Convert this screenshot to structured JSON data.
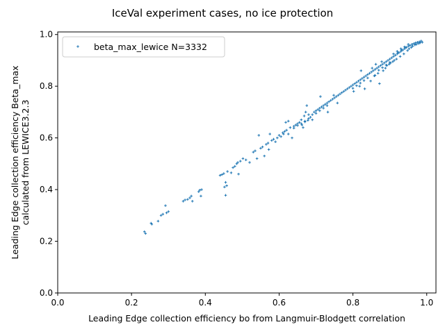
{
  "chart_data": {
    "type": "scatter",
    "title": "IceVal experiment cases, no ice protection",
    "xlabel": "Leading Edge collection efficiency bo from Langmuir-Blodgett correlation",
    "ylabel_lines": [
      "Leading Edge collection efficiency Beta_max",
      "calculated from LEWICE3.2.3"
    ],
    "xlim": [
      0.0,
      1.025
    ],
    "ylim": [
      0.0,
      1.01
    ],
    "xticks": [
      0.0,
      0.2,
      0.4,
      0.6,
      0.8,
      1.0
    ],
    "xtick_labels": [
      "0.0",
      "0.2",
      "0.4",
      "0.6",
      "0.8",
      "1.0"
    ],
    "yticks": [
      0.0,
      0.2,
      0.4,
      0.6,
      0.8,
      1.0
    ],
    "ytick_labels": [
      "0.0",
      "0.2",
      "0.4",
      "0.6",
      "0.8",
      "1.0"
    ],
    "grid": false,
    "legend_position": "upper-left",
    "marker": "+",
    "series": [
      {
        "name": "beta_max_lewice N=3332",
        "color": "#1f77b4",
        "points": [
          [
            0.235,
            0.237
          ],
          [
            0.238,
            0.23
          ],
          [
            0.253,
            0.27
          ],
          [
            0.255,
            0.266
          ],
          [
            0.272,
            0.278
          ],
          [
            0.28,
            0.3
          ],
          [
            0.285,
            0.305
          ],
          [
            0.292,
            0.338
          ],
          [
            0.3,
            0.315
          ],
          [
            0.295,
            0.31
          ],
          [
            0.34,
            0.355
          ],
          [
            0.345,
            0.36
          ],
          [
            0.352,
            0.362
          ],
          [
            0.358,
            0.368
          ],
          [
            0.362,
            0.375
          ],
          [
            0.365,
            0.355
          ],
          [
            0.382,
            0.392
          ],
          [
            0.385,
            0.398
          ],
          [
            0.388,
            0.375
          ],
          [
            0.39,
            0.4
          ],
          [
            0.44,
            0.455
          ],
          [
            0.445,
            0.458
          ],
          [
            0.45,
            0.462
          ],
          [
            0.452,
            0.41
          ],
          [
            0.455,
            0.428
          ],
          [
            0.455,
            0.378
          ],
          [
            0.458,
            0.415
          ],
          [
            0.46,
            0.47
          ],
          [
            0.47,
            0.465
          ],
          [
            0.475,
            0.485
          ],
          [
            0.48,
            0.49
          ],
          [
            0.485,
            0.5
          ],
          [
            0.488,
            0.505
          ],
          [
            0.49,
            0.46
          ],
          [
            0.495,
            0.51
          ],
          [
            0.502,
            0.52
          ],
          [
            0.51,
            0.515
          ],
          [
            0.52,
            0.505
          ],
          [
            0.53,
            0.545
          ],
          [
            0.535,
            0.55
          ],
          [
            0.54,
            0.52
          ],
          [
            0.545,
            0.61
          ],
          [
            0.55,
            0.56
          ],
          [
            0.555,
            0.565
          ],
          [
            0.56,
            0.53
          ],
          [
            0.565,
            0.575
          ],
          [
            0.57,
            0.58
          ],
          [
            0.572,
            0.555
          ],
          [
            0.575,
            0.615
          ],
          [
            0.58,
            0.59
          ],
          [
            0.585,
            0.595
          ],
          [
            0.59,
            0.585
          ],
          [
            0.595,
            0.6
          ],
          [
            0.6,
            0.61
          ],
          [
            0.605,
            0.605
          ],
          [
            0.61,
            0.62
          ],
          [
            0.612,
            0.615
          ],
          [
            0.615,
            0.625
          ],
          [
            0.618,
            0.66
          ],
          [
            0.62,
            0.63
          ],
          [
            0.625,
            0.615
          ],
          [
            0.625,
            0.665
          ],
          [
            0.63,
            0.64
          ],
          [
            0.635,
            0.6
          ],
          [
            0.64,
            0.645
          ],
          [
            0.645,
            0.65
          ],
          [
            0.65,
            0.655
          ],
          [
            0.655,
            0.66
          ],
          [
            0.66,
            0.67
          ],
          [
            0.662,
            0.65
          ],
          [
            0.665,
            0.64
          ],
          [
            0.668,
            0.685
          ],
          [
            0.67,
            0.665
          ],
          [
            0.672,
            0.7
          ],
          [
            0.675,
            0.725
          ],
          [
            0.678,
            0.668
          ],
          [
            0.68,
            0.69
          ],
          [
            0.685,
            0.68
          ],
          [
            0.69,
            0.67
          ],
          [
            0.695,
            0.7
          ],
          [
            0.7,
            0.705
          ],
          [
            0.705,
            0.71
          ],
          [
            0.71,
            0.715
          ],
          [
            0.712,
            0.76
          ],
          [
            0.715,
            0.72
          ],
          [
            0.72,
            0.725
          ],
          [
            0.725,
            0.73
          ],
          [
            0.73,
            0.735
          ],
          [
            0.732,
            0.7
          ],
          [
            0.735,
            0.74
          ],
          [
            0.74,
            0.745
          ],
          [
            0.745,
            0.75
          ],
          [
            0.748,
            0.765
          ],
          [
            0.75,
            0.755
          ],
          [
            0.755,
            0.76
          ],
          [
            0.758,
            0.735
          ],
          [
            0.76,
            0.765
          ],
          [
            0.765,
            0.77
          ],
          [
            0.77,
            0.775
          ],
          [
            0.775,
            0.78
          ],
          [
            0.78,
            0.785
          ],
          [
            0.785,
            0.79
          ],
          [
            0.79,
            0.795
          ],
          [
            0.795,
            0.8
          ],
          [
            0.8,
            0.805
          ],
          [
            0.802,
            0.78
          ],
          [
            0.805,
            0.81
          ],
          [
            0.81,
            0.815
          ],
          [
            0.815,
            0.82
          ],
          [
            0.818,
            0.8
          ],
          [
            0.82,
            0.825
          ],
          [
            0.822,
            0.86
          ],
          [
            0.825,
            0.83
          ],
          [
            0.83,
            0.835
          ],
          [
            0.832,
            0.79
          ],
          [
            0.835,
            0.84
          ],
          [
            0.84,
            0.845
          ],
          [
            0.845,
            0.85
          ],
          [
            0.848,
            0.82
          ],
          [
            0.85,
            0.855
          ],
          [
            0.852,
            0.87
          ],
          [
            0.855,
            0.86
          ],
          [
            0.858,
            0.84
          ],
          [
            0.86,
            0.865
          ],
          [
            0.862,
            0.885
          ],
          [
            0.865,
            0.87
          ],
          [
            0.868,
            0.85
          ],
          [
            0.87,
            0.875
          ],
          [
            0.872,
            0.81
          ],
          [
            0.875,
            0.88
          ],
          [
            0.878,
            0.895
          ],
          [
            0.88,
            0.885
          ],
          [
            0.882,
            0.86
          ],
          [
            0.885,
            0.89
          ],
          [
            0.888,
            0.87
          ],
          [
            0.89,
            0.895
          ],
          [
            0.892,
            0.88
          ],
          [
            0.895,
            0.9
          ],
          [
            0.898,
            0.885
          ],
          [
            0.9,
            0.905
          ],
          [
            0.902,
            0.89
          ],
          [
            0.905,
            0.91
          ],
          [
            0.908,
            0.895
          ],
          [
            0.91,
            0.915
          ],
          [
            0.912,
            0.9
          ],
          [
            0.915,
            0.92
          ],
          [
            0.918,
            0.905
          ],
          [
            0.92,
            0.925
          ],
          [
            0.922,
            0.93
          ],
          [
            0.925,
            0.93
          ],
          [
            0.928,
            0.915
          ],
          [
            0.93,
            0.935
          ],
          [
            0.932,
            0.94
          ],
          [
            0.935,
            0.94
          ],
          [
            0.938,
            0.925
          ],
          [
            0.94,
            0.945
          ],
          [
            0.942,
            0.95
          ],
          [
            0.945,
            0.95
          ],
          [
            0.948,
            0.938
          ],
          [
            0.95,
            0.955
          ],
          [
            0.952,
            0.945
          ],
          [
            0.955,
            0.958
          ],
          [
            0.958,
            0.95
          ],
          [
            0.96,
            0.962
          ],
          [
            0.962,
            0.955
          ],
          [
            0.965,
            0.965
          ],
          [
            0.968,
            0.96
          ],
          [
            0.97,
            0.968
          ],
          [
            0.972,
            0.962
          ],
          [
            0.975,
            0.97
          ],
          [
            0.978,
            0.965
          ],
          [
            0.98,
            0.972
          ],
          [
            0.982,
            0.968
          ],
          [
            0.985,
            0.975
          ],
          [
            0.988,
            0.97
          ],
          [
            0.86,
            0.842
          ],
          [
            0.87,
            0.862
          ],
          [
            0.88,
            0.872
          ],
          [
            0.89,
            0.882
          ],
          [
            0.9,
            0.892
          ],
          [
            0.84,
            0.832
          ],
          [
            0.83,
            0.822
          ],
          [
            0.82,
            0.812
          ],
          [
            0.81,
            0.802
          ],
          [
            0.8,
            0.792
          ],
          [
            0.91,
            0.925
          ],
          [
            0.92,
            0.935
          ],
          [
            0.93,
            0.945
          ],
          [
            0.94,
            0.952
          ],
          [
            0.95,
            0.962
          ],
          [
            0.7,
            0.695
          ],
          [
            0.71,
            0.705
          ],
          [
            0.69,
            0.69
          ],
          [
            0.72,
            0.715
          ],
          [
            0.73,
            0.725
          ],
          [
            0.68,
            0.675
          ],
          [
            0.67,
            0.662
          ],
          [
            0.66,
            0.655
          ],
          [
            0.65,
            0.648
          ],
          [
            0.64,
            0.638
          ]
        ]
      }
    ]
  }
}
